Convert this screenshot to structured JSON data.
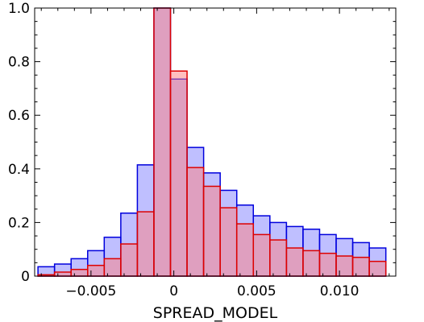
{
  "chart_data": {
    "type": "bar",
    "xlabel": "SPREAD_MODEL",
    "ylabel": "",
    "xlim": [
      -0.0084,
      0.0134
    ],
    "ylim": [
      0,
      1.0
    ],
    "grid": false,
    "x_ticks": [
      -0.005,
      0,
      0.005,
      0.01
    ],
    "x_tick_labels": [
      "−0.005",
      "0",
      "0.005",
      "0.010"
    ],
    "y_ticks": [
      0,
      0.2,
      0.4,
      0.6,
      0.8,
      1.0
    ],
    "y_tick_labels": [
      "0",
      "0.2",
      "0.4",
      "0.6",
      "0.8",
      "1.0"
    ],
    "bin_edges": [
      -0.0082,
      -0.0072,
      -0.0062,
      -0.0052,
      -0.0042,
      -0.0032,
      -0.0022,
      -0.0012,
      -0.0002,
      0.0008,
      0.0018,
      0.0028,
      0.0038,
      0.0048,
      0.0058,
      0.0068,
      0.0078,
      0.0088,
      0.0098,
      0.0108,
      0.0118,
      0.0128
    ],
    "series": [
      {
        "fill": "#8080ff",
        "stroke": "#0000dd",
        "fill_opacity": 0.5,
        "values": [
          0.035,
          0.045,
          0.065,
          0.095,
          0.145,
          0.235,
          0.415,
          1.0,
          0.735,
          0.48,
          0.385,
          0.32,
          0.265,
          0.225,
          0.2,
          0.185,
          0.175,
          0.155,
          0.14,
          0.125,
          0.105
        ]
      },
      {
        "fill": "#ff7f7f",
        "stroke": "#dd0000",
        "fill_opacity": 0.5,
        "values": [
          0.005,
          0.015,
          0.025,
          0.04,
          0.065,
          0.12,
          0.24,
          1.0,
          0.765,
          0.405,
          0.335,
          0.255,
          0.195,
          0.155,
          0.135,
          0.105,
          0.095,
          0.085,
          0.075,
          0.07,
          0.055
        ]
      }
    ]
  }
}
